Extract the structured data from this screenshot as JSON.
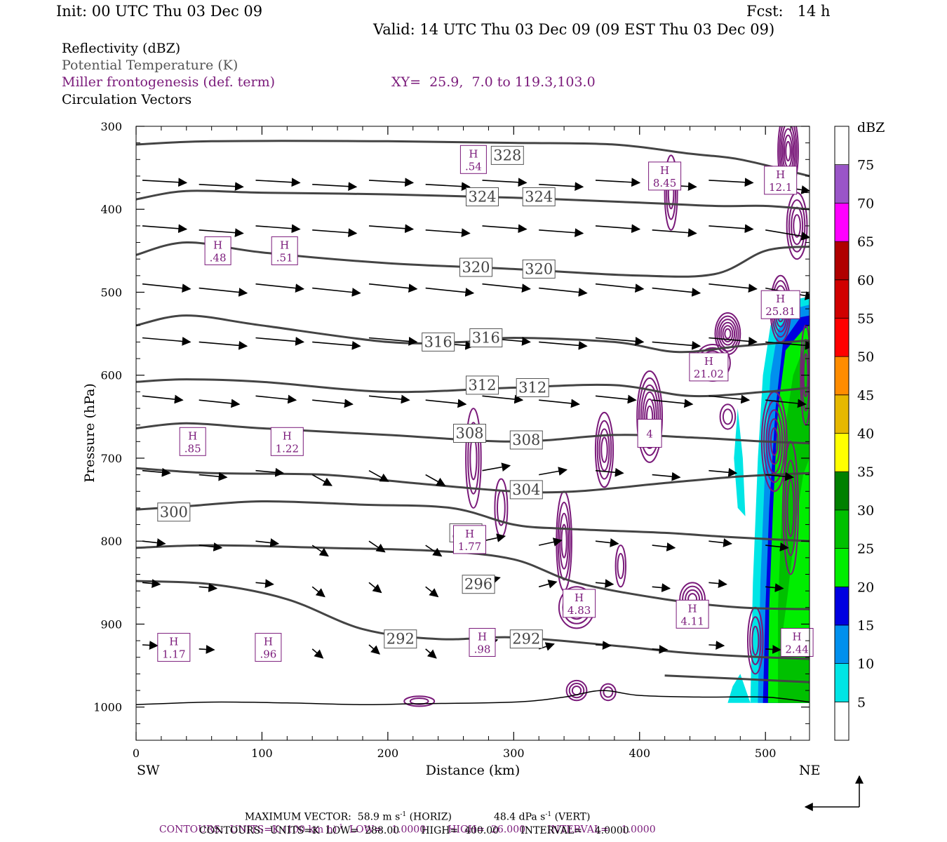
{
  "header": {
    "init": "Init: 00 UTC Thu 03 Dec 09",
    "fcst": "Fcst:   14 h",
    "valid": "Valid: 14 UTC Thu 03 Dec 09 (09 EST Thu 03 Dec 09)"
  },
  "legend_lines": {
    "reflectivity": "Reflectivity (dBZ)",
    "potential_temperature": "Potential Temperature (K)",
    "frontogenesis": "Miller frontogenesis (def. term)",
    "xy": "XY=  25.9,  7.0 to 119.3,103.0",
    "vectors": "Circulation Vectors"
  },
  "footer": {
    "max_vector_label": "MAXIMUM VECTOR:  58.9 m s",
    "max_vector_horiz": "(HORIZ)",
    "max_vector_vert": "48.4 dPa s",
    "max_vector_vert_tail": "(VERT)",
    "superscript": "-1",
    "contours1_a": "CONTOURS:  UNITS=K (100 km h)",
    "contours1_b": "LOW=   1.0000       HIGH=  26.000       INTERVAL=    1.0000",
    "contours2": "CONTOURS:  UNITS=K  LOW=  288.00       HIGH=  400.00       INTERVAL=    4.0000"
  },
  "colors": {
    "purple": "#7a1a7a",
    "theta": "#444444",
    "text_gray": "#555555"
  },
  "chart_data": {
    "type": "cross-section",
    "xlabel": "Distance (km)",
    "ylabel": "Pressure (hPa)",
    "xlim": [
      0,
      535
    ],
    "ylim": [
      1040,
      300
    ],
    "x_ticks": [
      0,
      100,
      200,
      300,
      400,
      500
    ],
    "y_ticks": [
      300,
      400,
      500,
      600,
      700,
      800,
      900,
      1000
    ],
    "left_end_label": "SW",
    "right_end_label": "NE",
    "theta_contours": [
      {
        "value": 328,
        "label": "328",
        "label_at": [
          295,
          335
        ],
        "points": [
          [
            0,
            322
          ],
          [
            60,
            318
          ],
          [
            200,
            318
          ],
          [
            300,
            320
          ],
          [
            380,
            322
          ],
          [
            440,
            333
          ],
          [
            480,
            340
          ],
          [
            535,
            360
          ]
        ]
      },
      {
        "value": 324,
        "label": "324",
        "label_at": [
          275,
          385
        ],
        "points": [
          [
            0,
            388
          ],
          [
            40,
            378
          ],
          [
            100,
            380
          ],
          [
            200,
            382
          ],
          [
            300,
            386
          ],
          [
            400,
            392
          ],
          [
            460,
            396
          ],
          [
            500,
            396
          ],
          [
            535,
            400
          ]
        ]
      },
      {
        "value": 320,
        "label": "320",
        "label_at": [
          270,
          470
        ],
        "points": [
          [
            0,
            455
          ],
          [
            40,
            440
          ],
          [
            100,
            452
          ],
          [
            200,
            465
          ],
          [
            300,
            472
          ],
          [
            400,
            480
          ],
          [
            460,
            478
          ],
          [
            500,
            450
          ],
          [
            535,
            445
          ]
        ]
      },
      {
        "value": 316,
        "label": "316",
        "label_at": [
          240,
          560
        ],
        "points": [
          [
            0,
            540
          ],
          [
            40,
            528
          ],
          [
            100,
            540
          ],
          [
            200,
            560
          ],
          [
            260,
            560
          ],
          [
            300,
            555
          ],
          [
            380,
            560
          ],
          [
            430,
            572
          ],
          [
            480,
            565
          ],
          [
            535,
            558
          ]
        ]
      },
      {
        "value": 312,
        "label": "312",
        "label_at": [
          275,
          612
        ],
        "points": [
          [
            0,
            608
          ],
          [
            40,
            605
          ],
          [
            100,
            608
          ],
          [
            200,
            620
          ],
          [
            300,
            615
          ],
          [
            380,
            612
          ],
          [
            440,
            625
          ],
          [
            500,
            620
          ],
          [
            535,
            615
          ]
        ]
      },
      {
        "value": 308,
        "label": "308",
        "label_at": [
          265,
          670
        ],
        "points": [
          [
            0,
            664
          ],
          [
            40,
            658
          ],
          [
            100,
            664
          ],
          [
            200,
            672
          ],
          [
            300,
            680
          ],
          [
            380,
            672
          ],
          [
            440,
            675
          ],
          [
            500,
            680
          ],
          [
            535,
            682
          ]
        ]
      },
      {
        "value": 304,
        "label": "304",
        "label_at": [
          310,
          738
        ],
        "points": [
          [
            0,
            712
          ],
          [
            60,
            718
          ],
          [
            150,
            720
          ],
          [
            220,
            730
          ],
          [
            300,
            740
          ],
          [
            350,
            740
          ],
          [
            420,
            730
          ],
          [
            480,
            722
          ],
          [
            535,
            718
          ]
        ]
      },
      {
        "value": 300,
        "label": "300",
        "label_at": [
          30,
          765
        ],
        "label_at2": [
          262,
          790
        ],
        "points": [
          [
            0,
            762
          ],
          [
            40,
            758
          ],
          [
            100,
            752
          ],
          [
            180,
            756
          ],
          [
            250,
            760
          ],
          [
            300,
            780
          ],
          [
            340,
            785
          ],
          [
            420,
            790
          ],
          [
            470,
            795
          ],
          [
            535,
            800
          ]
        ]
      },
      {
        "value": 296,
        "label": "296",
        "label_at": [
          272,
          852
        ],
        "points": [
          [
            0,
            808
          ],
          [
            60,
            805
          ],
          [
            150,
            808
          ],
          [
            240,
            812
          ],
          [
            300,
            822
          ],
          [
            350,
            850
          ],
          [
            420,
            870
          ],
          [
            480,
            880
          ],
          [
            535,
            882
          ]
        ]
      },
      {
        "value": 292,
        "label": "292",
        "label_at": [
          210,
          918
        ],
        "label_at2": [
          310,
          918
        ],
        "points": [
          [
            0,
            848
          ],
          [
            60,
            852
          ],
          [
            120,
            870
          ],
          [
            180,
            906
          ],
          [
            240,
            918
          ],
          [
            300,
            916
          ],
          [
            380,
            926
          ],
          [
            440,
            935
          ],
          [
            500,
            940
          ],
          [
            535,
            942
          ]
        ]
      },
      {
        "value": 288,
        "label": "",
        "points": [
          [
            420,
            962
          ],
          [
            480,
            966
          ],
          [
            535,
            970
          ]
        ]
      }
    ],
    "terrain": [
      [
        0,
        997
      ],
      [
        60,
        994
      ],
      [
        120,
        995
      ],
      [
        180,
        997
      ],
      [
        220,
        996
      ],
      [
        300,
        994
      ],
      [
        340,
        988
      ],
      [
        370,
        980
      ],
      [
        400,
        986
      ],
      [
        450,
        988
      ],
      [
        500,
        988
      ],
      [
        535,
        994
      ]
    ],
    "frontogenesis_maxima": [
      {
        "label": "H",
        "value": ".54",
        "x": 268,
        "p": 340
      },
      {
        "label": "H",
        "value": "8.45",
        "x": 420,
        "p": 360
      },
      {
        "label": "H",
        "value": "12.1",
        "x": 512,
        "p": 365
      },
      {
        "label": "H",
        "value": ".48",
        "x": 65,
        "p": 450
      },
      {
        "label": "H",
        "value": ".51",
        "x": 118,
        "p": 450
      },
      {
        "label": "H",
        "value": "25.81",
        "x": 512,
        "p": 515
      },
      {
        "label": "H",
        "value": "21.02",
        "x": 455,
        "p": 590
      },
      {
        "label": "H",
        "value": ".85",
        "x": 45,
        "p": 680
      },
      {
        "label": "H",
        "value": "1.22",
        "x": 120,
        "p": 680
      },
      {
        "label": "",
        "value": "4",
        "x": 408,
        "p": 670
      },
      {
        "label": "H",
        "value": "1.77",
        "x": 265,
        "p": 798
      },
      {
        "label": "H",
        "value": "4.83",
        "x": 352,
        "p": 875
      },
      {
        "label": "H",
        "value": "4.11",
        "x": 442,
        "p": 888
      },
      {
        "label": "H",
        "value": "2.44",
        "x": 525,
        "p": 922
      },
      {
        "label": "H",
        "value": "1.17",
        "x": 30,
        "p": 928
      },
      {
        "label": "H",
        "value": ".96",
        "x": 105,
        "p": 928
      },
      {
        "label": "H",
        "value": ".98",
        "x": 275,
        "p": 922
      }
    ],
    "colorbar": {
      "title": "dBZ",
      "levels": [
        5,
        10,
        15,
        20,
        25,
        30,
        35,
        40,
        45,
        50,
        55,
        60,
        65,
        70,
        75
      ],
      "colors": [
        "#ffffff",
        "#00e5e5",
        "#0090ee",
        "#0000e0",
        "#00ee00",
        "#00c000",
        "#008000",
        "#ffff00",
        "#e6b800",
        "#ff8c00",
        "#ff0000",
        "#d00000",
        "#b00000",
        "#ff00ff",
        "#9a55c8",
        "#ffffff"
      ]
    }
  }
}
